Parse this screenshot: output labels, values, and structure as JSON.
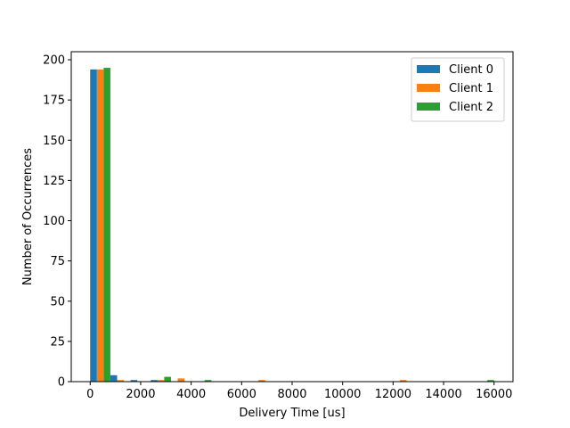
{
  "chart_data": {
    "type": "bar",
    "title": "",
    "xlabel": "Delivery Time [us]",
    "ylabel": "Number of Occurrences",
    "xlim": [
      -750,
      16750
    ],
    "ylim": [
      0,
      205
    ],
    "xticks": [
      0,
      2000,
      4000,
      6000,
      8000,
      10000,
      12000,
      14000,
      16000
    ],
    "yticks": [
      0,
      25,
      50,
      75,
      100,
      125,
      150,
      175,
      200
    ],
    "grid": false,
    "legend_position": "top-right",
    "bin_width": 800,
    "series": [
      {
        "name": "Client 0",
        "color": "#1f77b4",
        "bins": [
          0,
          800,
          1600,
          2400
        ],
        "values": [
          194,
          4,
          1,
          1
        ]
      },
      {
        "name": "Client 1",
        "color": "#ff7f0e",
        "bins": [
          0,
          800,
          2400,
          3200,
          6400,
          12000
        ],
        "values": [
          194,
          1,
          1,
          2,
          1,
          1
        ]
      },
      {
        "name": "Client 2",
        "color": "#2ca02c",
        "bins": [
          0,
          2400,
          4000,
          15200
        ],
        "values": [
          195,
          3,
          1,
          1
        ]
      }
    ]
  }
}
